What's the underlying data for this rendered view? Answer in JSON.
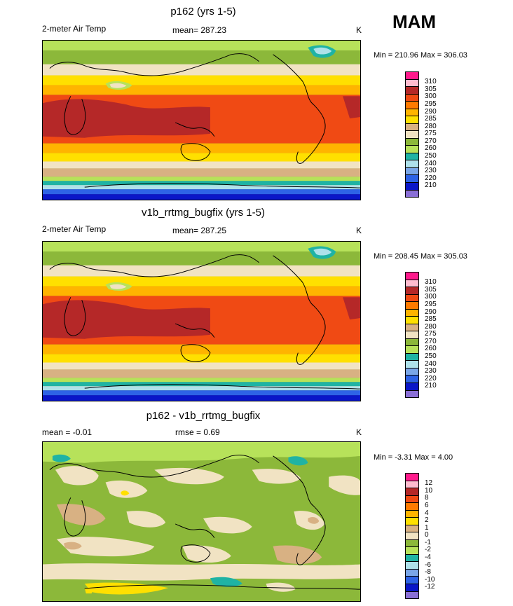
{
  "season": "MAM",
  "colors": {
    "temp_scale": [
      "#8a6fd6",
      "#0a16c8",
      "#2e63e6",
      "#7aa6e8",
      "#aee1ea",
      "#1fb3a4",
      "#b7e25a",
      "#8cb83a",
      "#f1e3c3",
      "#d8b183",
      "#ffe000",
      "#ffb400",
      "#ff7a00",
      "#f04a14",
      "#b52828",
      "#ffbccf",
      "#ff1a8c"
    ],
    "diff_scale": [
      "#8a6fd6",
      "#0a16c8",
      "#2e63e6",
      "#7aa6e8",
      "#aee1ea",
      "#1fb3a4",
      "#b7e25a",
      "#8cb83a",
      "#f1e3c3",
      "#d8b183",
      "#ffe000",
      "#ffb400",
      "#ff7a00",
      "#f04a14",
      "#b52828",
      "#ffbccf",
      "#ff1a8c"
    ]
  },
  "panels": [
    {
      "title": "p162 (yrs 1-5)",
      "left_label": "2-meter Air Temp",
      "center_label": "mean= 287.23",
      "units": "K",
      "minmax": "Min = 210.96 Max = 306.03",
      "legend_ticks": [
        "310",
        "305",
        "300",
        "295",
        "290",
        "285",
        "280",
        "275",
        "270",
        "260",
        "250",
        "240",
        "230",
        "220",
        "210"
      ]
    },
    {
      "title": "v1b_rrtmg_bugfix (yrs 1-5)",
      "left_label": "2-meter Air Temp",
      "center_label": "mean= 287.25",
      "units": "K",
      "minmax": "Min = 208.45 Max = 305.03",
      "legend_ticks": [
        "310",
        "305",
        "300",
        "295",
        "290",
        "285",
        "280",
        "275",
        "270",
        "260",
        "250",
        "240",
        "230",
        "220",
        "210"
      ]
    },
    {
      "title": "p162 - v1b_rrtmg_bugfix",
      "left_label": "mean =  -0.01",
      "center_label": "rmse =   0.69",
      "units": "K",
      "minmax": "Min =  -3.31 Max =   4.00",
      "legend_ticks": [
        "12",
        "10",
        "8",
        "6",
        "4",
        "2",
        "1",
        "0",
        "-1",
        "-2",
        "-4",
        "-6",
        "-8",
        "-10",
        "-12"
      ]
    }
  ]
}
